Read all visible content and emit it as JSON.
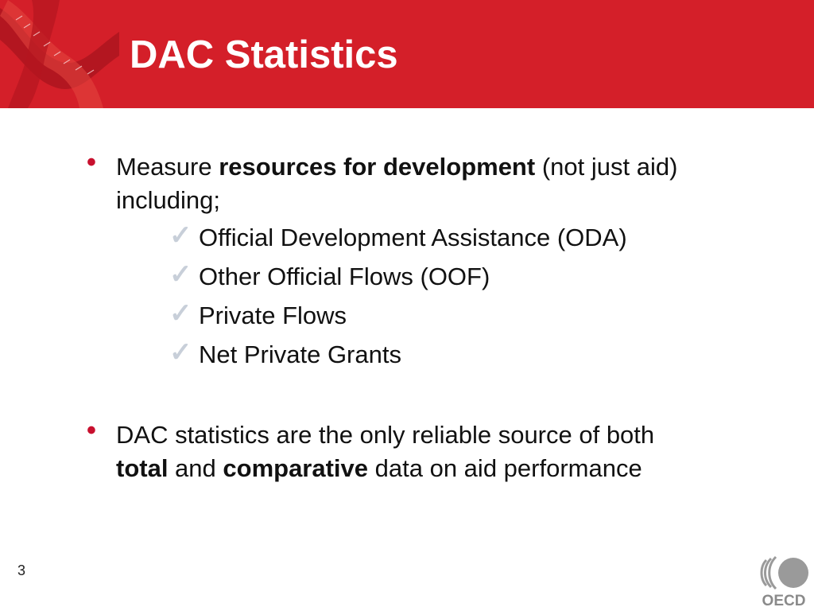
{
  "slide": {
    "title": "DAC Statistics",
    "page_number": "3",
    "logo_text": "OECD"
  },
  "bullets": [
    {
      "parts": [
        "Measure ",
        "resources for development",
        " (not just aid)"
      ],
      "line2": "including;",
      "sub_items": [
        "Official Development Assistance (ODA)",
        "Other Official Flows (OOF)",
        "Private Flows",
        "Net Private Grants"
      ]
    },
    {
      "line1": "DAC statistics are the only reliable source of both",
      "line2_parts": [
        "total",
        " and ",
        "comparative",
        " data on aid performance"
      ]
    }
  ],
  "icons": {
    "bullet": "•",
    "check": "✓"
  },
  "colors": {
    "header": "#d41f29",
    "bullet": "#c8102e",
    "check": "#c8cfd9"
  }
}
